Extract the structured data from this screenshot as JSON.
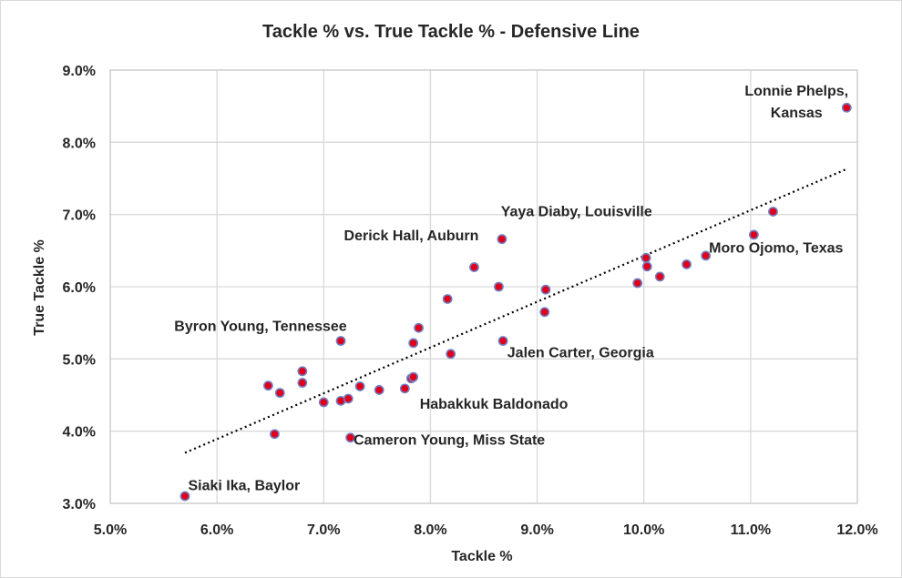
{
  "chart_data": {
    "type": "scatter",
    "title": "Tackle % vs. True Tackle % - Defensive Line",
    "xlabel": "Tackle %",
    "ylabel": "True Tackle %",
    "xlim": [
      0.05,
      0.12
    ],
    "ylim": [
      0.03,
      0.09
    ],
    "x_ticks": [
      0.05,
      0.06,
      0.07,
      0.08,
      0.09,
      0.1,
      0.11,
      0.12
    ],
    "x_tick_labels": [
      "5.0%",
      "6.0%",
      "7.0%",
      "8.0%",
      "9.0%",
      "10.0%",
      "11.0%",
      "12.0%"
    ],
    "y_ticks": [
      0.03,
      0.04,
      0.05,
      0.06,
      0.07,
      0.08,
      0.09
    ],
    "y_tick_labels": [
      "3.0%",
      "4.0%",
      "5.0%",
      "6.0%",
      "7.0%",
      "8.0%",
      "9.0%"
    ],
    "grid": true,
    "legend": "none",
    "marker_color": "#e0001b",
    "marker_edge_color": "#6f7fc2",
    "trendline": {
      "type": "linear",
      "style": "dotted",
      "color": "#000000",
      "x": [
        0.057,
        0.119
      ],
      "y": [
        0.037,
        0.0763
      ]
    },
    "points": [
      {
        "x": 0.057,
        "y": 0.031
      },
      {
        "x": 0.0648,
        "y": 0.0463
      },
      {
        "x": 0.0654,
        "y": 0.0396
      },
      {
        "x": 0.0659,
        "y": 0.0453
      },
      {
        "x": 0.068,
        "y": 0.0467
      },
      {
        "x": 0.068,
        "y": 0.0483
      },
      {
        "x": 0.07,
        "y": 0.044
      },
      {
        "x": 0.0716,
        "y": 0.0442
      },
      {
        "x": 0.0716,
        "y": 0.0525
      },
      {
        "x": 0.0723,
        "y": 0.0445
      },
      {
        "x": 0.0725,
        "y": 0.0391
      },
      {
        "x": 0.0734,
        "y": 0.0462
      },
      {
        "x": 0.0752,
        "y": 0.0457
      },
      {
        "x": 0.0776,
        "y": 0.0459
      },
      {
        "x": 0.0782,
        "y": 0.0473
      },
      {
        "x": 0.0784,
        "y": 0.0475
      },
      {
        "x": 0.0784,
        "y": 0.0522
      },
      {
        "x": 0.0789,
        "y": 0.0543
      },
      {
        "x": 0.0816,
        "y": 0.0583
      },
      {
        "x": 0.0819,
        "y": 0.0507
      },
      {
        "x": 0.0841,
        "y": 0.0627
      },
      {
        "x": 0.0864,
        "y": 0.06
      },
      {
        "x": 0.0867,
        "y": 0.0666
      },
      {
        "x": 0.0868,
        "y": 0.0525
      },
      {
        "x": 0.0907,
        "y": 0.0565
      },
      {
        "x": 0.0908,
        "y": 0.0596
      },
      {
        "x": 0.0994,
        "y": 0.0605
      },
      {
        "x": 0.1002,
        "y": 0.064
      },
      {
        "x": 0.1003,
        "y": 0.0628
      },
      {
        "x": 0.1015,
        "y": 0.0614
      },
      {
        "x": 0.104,
        "y": 0.0631
      },
      {
        "x": 0.1058,
        "y": 0.0643
      },
      {
        "x": 0.1103,
        "y": 0.0672
      },
      {
        "x": 0.1121,
        "y": 0.0704
      },
      {
        "x": 0.119,
        "y": 0.0848
      }
    ],
    "annotations": [
      {
        "lines": [
          "Lonnie Phelps,",
          "Kansas"
        ],
        "x": 0.1143,
        "y": 0.0865,
        "anchor": "middle"
      },
      {
        "lines": [
          "Yaya Diaby, Louisville"
        ],
        "x": 0.0866,
        "y": 0.0698,
        "anchor": "start"
      },
      {
        "lines": [
          "Derick Hall, Auburn"
        ],
        "x": 0.0719,
        "y": 0.0664,
        "anchor": "start"
      },
      {
        "lines": [
          "Moro Ojomo, Texas"
        ],
        "x": 0.1061,
        "y": 0.0647,
        "anchor": "start"
      },
      {
        "lines": [
          "Byron Young, Tennessee"
        ],
        "x": 0.056,
        "y": 0.0539,
        "anchor": "start"
      },
      {
        "lines": [
          "Jalen Carter, Georgia"
        ],
        "x": 0.0872,
        "y": 0.0502,
        "anchor": "start"
      },
      {
        "lines": [
          "Habakkuk Baldonado"
        ],
        "x": 0.079,
        "y": 0.0431,
        "anchor": "start"
      },
      {
        "lines": [
          "Cameron Young, Miss State"
        ],
        "x": 0.0728,
        "y": 0.0381,
        "anchor": "start"
      },
      {
        "lines": [
          "Siaki Ika, Baylor"
        ],
        "x": 0.0573,
        "y": 0.0318,
        "anchor": "start"
      }
    ]
  }
}
